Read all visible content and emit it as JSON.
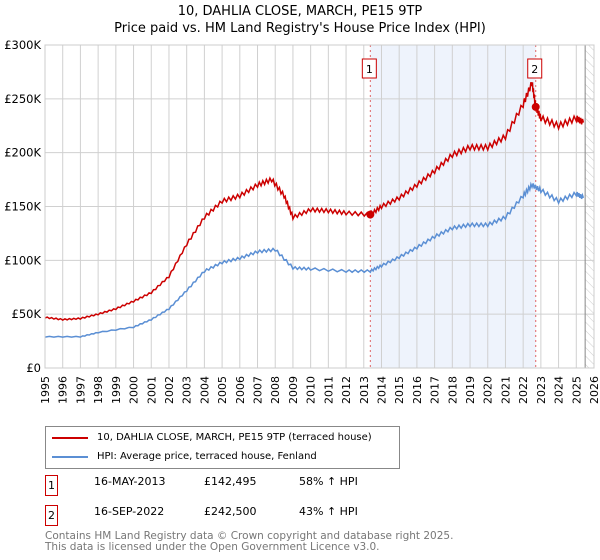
{
  "title": "10, DAHLIA CLOSE, MARCH, PE15 9TP",
  "subtitle": "Price paid vs. HM Land Registry's House Price Index (HPI)",
  "chart_data": {
    "type": "line",
    "xlim": [
      1995,
      2026
    ],
    "ylim": [
      0,
      300000
    ],
    "x_ticks": [
      "1995",
      "1996",
      "1997",
      "1998",
      "1999",
      "2000",
      "2001",
      "2002",
      "2003",
      "2004",
      "2005",
      "2006",
      "2007",
      "2008",
      "2009",
      "2010",
      "2011",
      "2012",
      "2013",
      "2014",
      "2015",
      "2016",
      "2017",
      "2018",
      "2019",
      "2020",
      "2021",
      "2022",
      "2023",
      "2024",
      "2025",
      "2026"
    ],
    "y_ticks": [
      {
        "v": 0,
        "label": "£0"
      },
      {
        "v": 50000,
        "label": "£50K"
      },
      {
        "v": 100000,
        "label": "£100K"
      },
      {
        "v": 150000,
        "label": "£150K"
      },
      {
        "v": 200000,
        "label": "£200K"
      },
      {
        "v": 250000,
        "label": "£250K"
      },
      {
        "v": 300000,
        "label": "£300K"
      }
    ],
    "shaded_range": [
      2013.37,
      2022.71
    ],
    "hatched_from": 2025.5,
    "series": [
      {
        "name": "10, DAHLIA CLOSE, MARCH, PE15 9TP (terraced house)",
        "color": "#cc0000",
        "x": [
          1995,
          1996,
          1997,
          1998,
          1999,
          2000,
          2001,
          2002,
          2003,
          2004,
          2005,
          2006,
          2007,
          2007.8,
          2008.5,
          2009,
          2010,
          2011,
          2012,
          2013.37,
          2014,
          2015,
          2016,
          2017,
          2018,
          2019,
          2020,
          2021,
          2022,
          2022.5,
          2022.71,
          2023,
          2024,
          2025,
          2025.4
        ],
        "y": [
          47000,
          45000,
          46000,
          50000,
          55000,
          62000,
          70000,
          85000,
          115000,
          140000,
          155000,
          160000,
          170000,
          175000,
          160000,
          140000,
          147000,
          146000,
          144000,
          142495,
          150000,
          158000,
          170000,
          183000,
          198000,
          205000,
          205000,
          215000,
          245000,
          265000,
          242500,
          232000,
          225000,
          232000,
          228000
        ]
      },
      {
        "name": "HPI: Average price, terraced house, Fenland",
        "color": "#5b8fd4",
        "x": [
          1995,
          1997,
          1998,
          2000,
          2001,
          2002,
          2003,
          2004,
          2005,
          2006,
          2007,
          2008,
          2009,
          2010,
          2012,
          2013.37,
          2014,
          2015,
          2016,
          2017,
          2018,
          2019,
          2020,
          2021,
          2022,
          2022.5,
          2023,
          2024,
          2025,
          2025.4
        ],
        "y": [
          29000,
          29000,
          33000,
          38000,
          45000,
          55000,
          72000,
          90000,
          98000,
          102000,
          108000,
          110000,
          93000,
          92000,
          90000,
          90000,
          95000,
          103000,
          112000,
          122000,
          130000,
          133000,
          133000,
          140000,
          160000,
          170000,
          165000,
          155000,
          162000,
          158000
        ]
      }
    ],
    "annotations": [
      {
        "label": "1",
        "x": 2013.37,
        "y": 142495
      },
      {
        "label": "2",
        "x": 2022.71,
        "y": 242500
      }
    ]
  },
  "transactions": [
    {
      "n": "1",
      "date": "16-MAY-2013",
      "price": "£142,495",
      "hpi": "58% ↑ HPI"
    },
    {
      "n": "2",
      "date": "16-SEP-2022",
      "price": "£242,500",
      "hpi": "43% ↑ HPI"
    }
  ],
  "footer": [
    "Contains HM Land Registry data © Crown copyright and database right 2025.",
    "This data is licensed under the Open Government Licence v3.0."
  ]
}
